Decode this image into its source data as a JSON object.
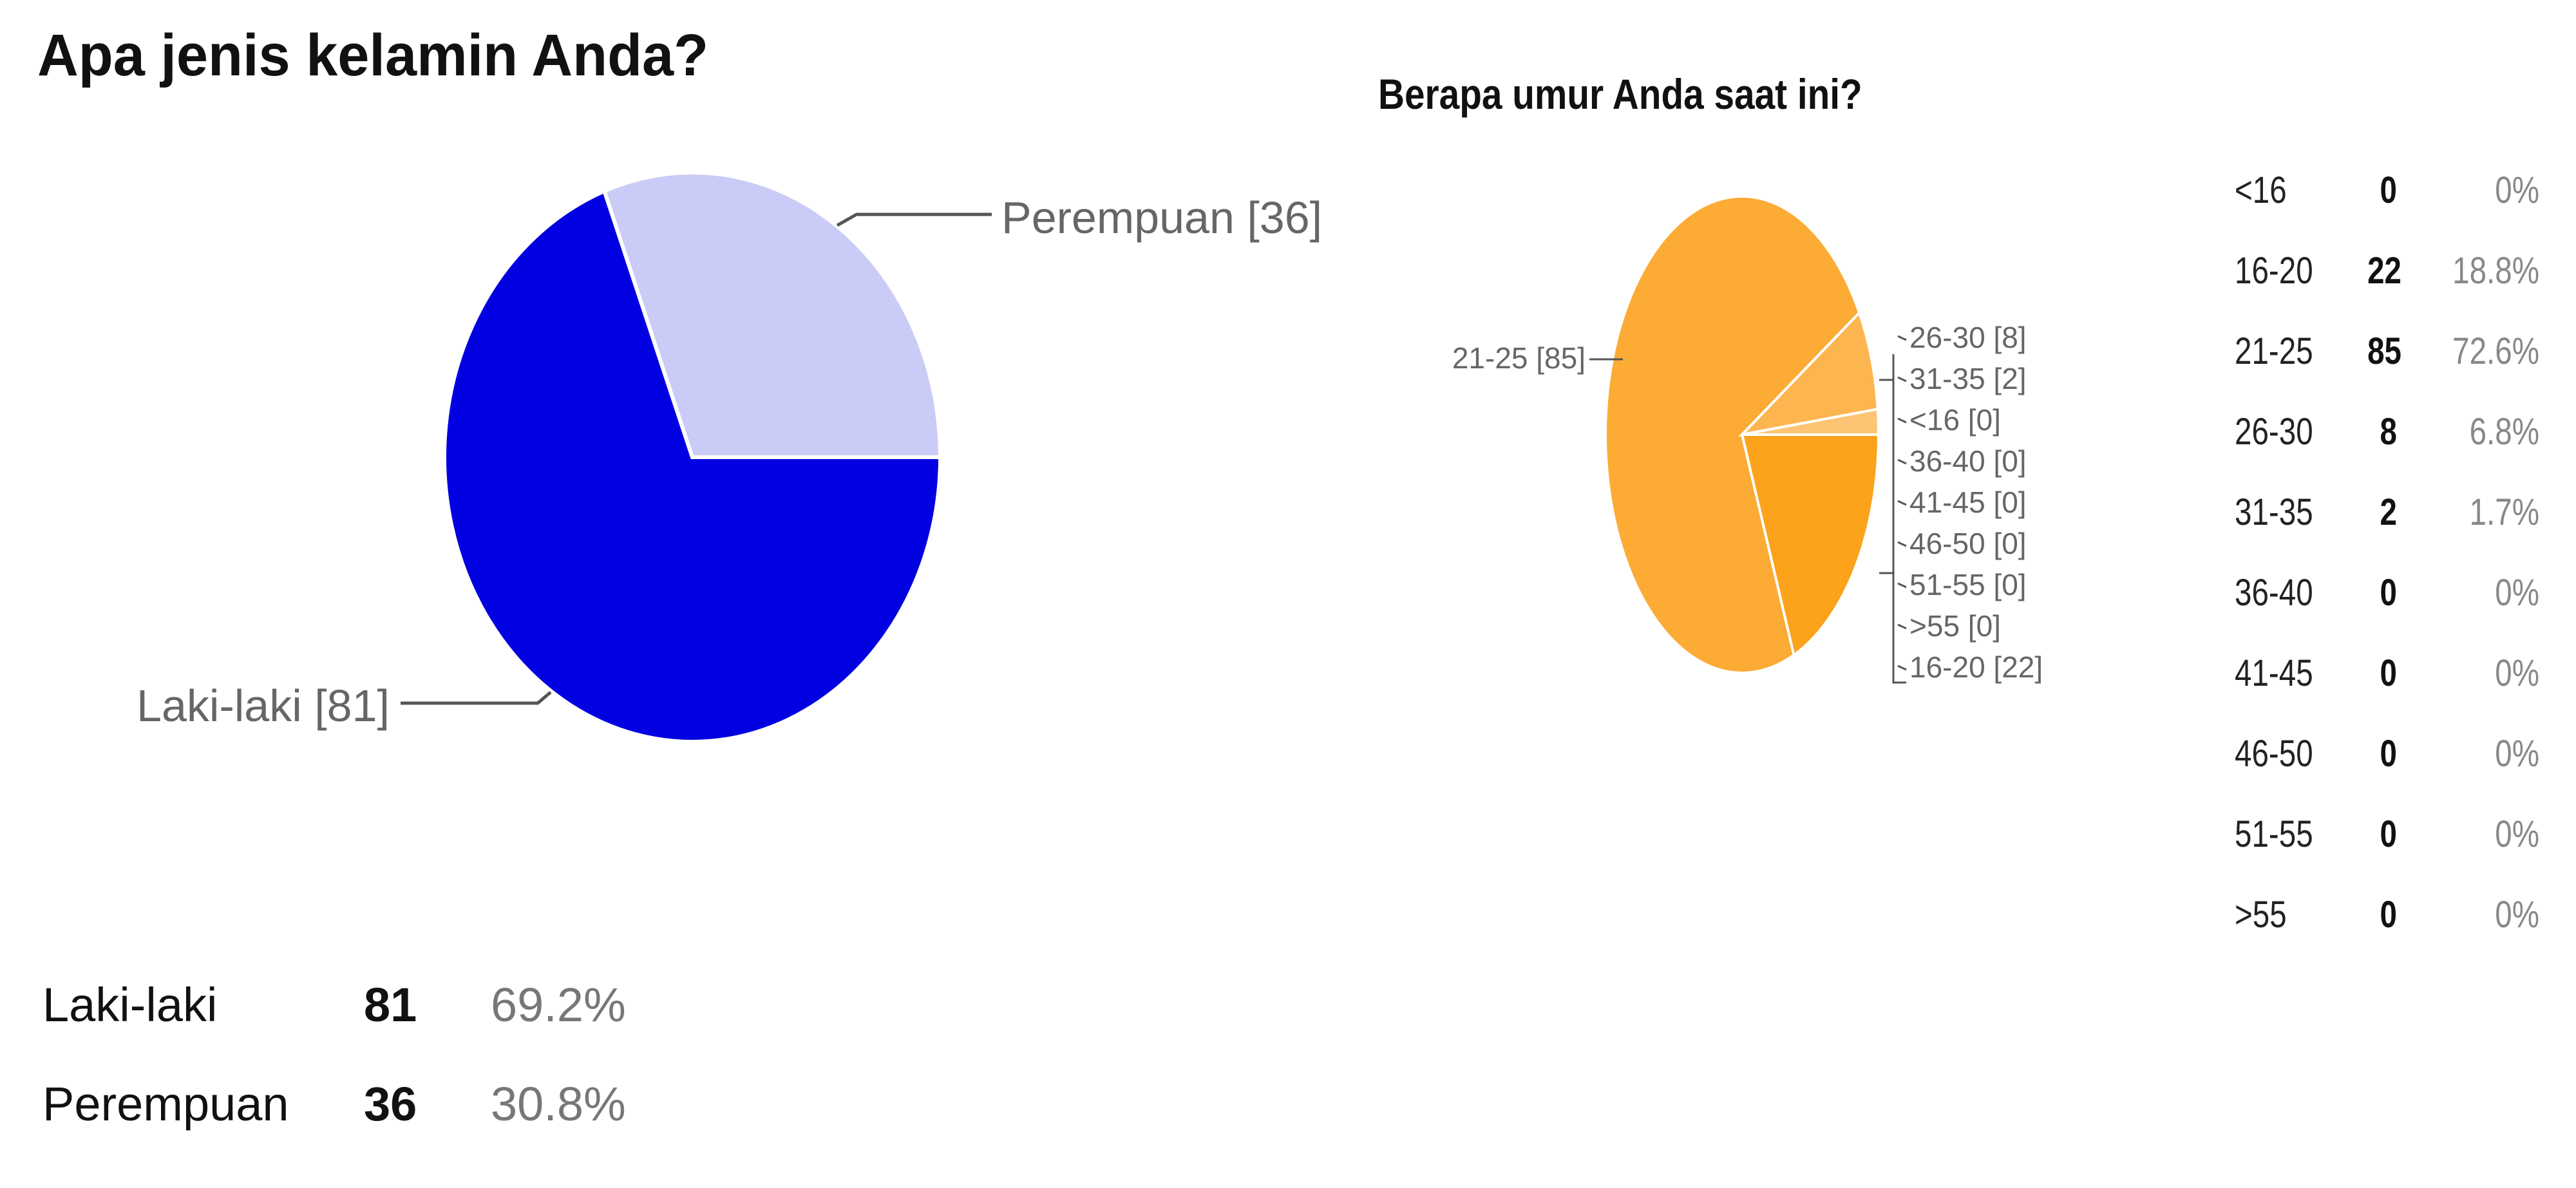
{
  "chart_data": [
    {
      "type": "pie",
      "title": "Apa jenis kelamin Anda?",
      "categories": [
        "Laki-laki",
        "Perempuan"
      ],
      "values": [
        81,
        36
      ],
      "slice_labels": [
        "Laki-laki [81]",
        "Perempuan [36]"
      ],
      "colors": [
        "#0000e0",
        "#cbcbf7"
      ],
      "summary": [
        {
          "category": "Laki-laki",
          "count": "81",
          "percent": "69.2%"
        },
        {
          "category": "Perempuan",
          "count": "36",
          "percent": "30.8%"
        }
      ]
    },
    {
      "type": "pie",
      "title": "Berapa umur Anda saat ini?",
      "categories": [
        "<16",
        "16-20",
        "21-25",
        "26-30",
        "31-35",
        "36-40",
        "41-45",
        "46-50",
        "51-55",
        ">55"
      ],
      "values": [
        0,
        22,
        85,
        8,
        2,
        0,
        0,
        0,
        0,
        0
      ],
      "slice_labels": {
        "21-25": "21-25 [85]",
        "26-30": "26-30 [8]",
        "31-35": "31-35 [2]",
        "<16": "<16 [0]",
        "36-40": "36-40 [0]",
        "41-45": "41-45 [0]",
        "46-50": "46-50 [0]",
        "51-55": "51-55 [0]",
        ">55": ">55 [0]",
        "16-20": "16-20 [22]"
      },
      "colors": {
        "21-25": "#fcab35",
        "16-20": "#fca21b",
        "26-30": "#fdb54f",
        "31-35": "#fdc573"
      },
      "summary": [
        {
          "category": "<16",
          "count": "0",
          "percent": "0%"
        },
        {
          "category": "16-20",
          "count": "22",
          "percent": "18.8%"
        },
        {
          "category": "21-25",
          "count": "85",
          "percent": "72.6%"
        },
        {
          "category": "26-30",
          "count": "8",
          "percent": "6.8%"
        },
        {
          "category": "31-35",
          "count": "2",
          "percent": "1.7%"
        },
        {
          "category": "36-40",
          "count": "0",
          "percent": "0%"
        },
        {
          "category": "41-45",
          "count": "0",
          "percent": "0%"
        },
        {
          "category": "46-50",
          "count": "0",
          "percent": "0%"
        },
        {
          "category": "51-55",
          "count": "0",
          "percent": "0%"
        },
        {
          "category": ">55",
          "count": "0",
          "percent": "0%"
        }
      ]
    }
  ]
}
